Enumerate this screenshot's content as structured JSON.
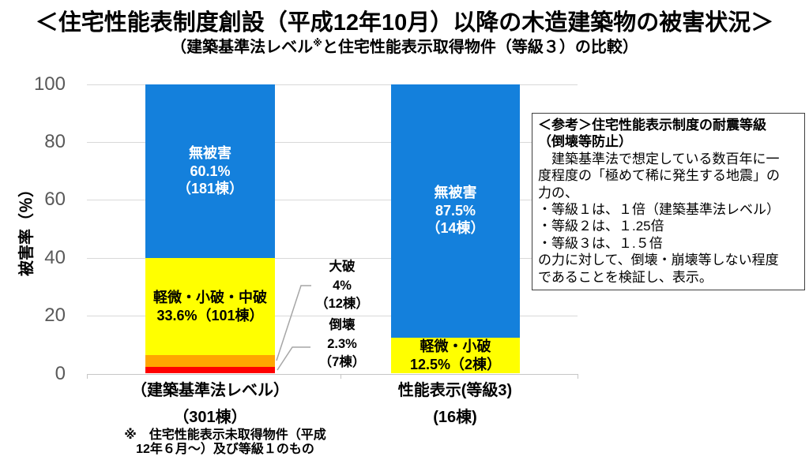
{
  "title": "＜住宅性能表制度創設（平成12年10月）以降の木造建築物の被害状況＞",
  "subtitle": {
    "pre": "（建築基準法レベル",
    "marker": "※",
    "post": "と住宅性能表示取得物件（等級３）の比較）"
  },
  "footnote": {
    "lines": [
      "※　住宅性能表示未取得物件（平成",
      "12年６月～）及び等級１のもの"
    ]
  },
  "reference_box": {
    "heading_lines": [
      "＜参考＞住宅性能表示制度の耐震等級",
      "（倒壊等防止）"
    ],
    "body_lines": [
      "　建築基準法で想定している数百年に一",
      "度程度の「極めて稀に発生する地震」の",
      "力の、",
      "・等級１は、１倍（建築基準法レベル）",
      "・等級２は、１.25倍",
      "・等級３は、１.５倍",
      "の力に対して、倒壊・崩壊等しない程度",
      "であることを検証し、表示。"
    ]
  },
  "colors": {
    "no_damage_blue": "#1480DC",
    "minor_yellow": "#FFFF00",
    "severe_orange": "#FFA600",
    "collapse_red": "#FF0000",
    "gridline": "#D9D9D9",
    "axis_label_gray": "#595959",
    "leader_gray": "#A6A6A6"
  },
  "chart_data": {
    "type": "bar",
    "subtype": "stacked-percentage",
    "ylabel": "被害率（％）",
    "ylim": [
      0,
      100
    ],
    "yticks": [
      0,
      20,
      40,
      60,
      80,
      100
    ],
    "grid": "on",
    "categories": [
      {
        "lines": [
          "（建築基準法レベル）",
          "（301棟）"
        ]
      },
      {
        "lines": [
          "性能表示(等級3)",
          "(16棟)"
        ]
      }
    ],
    "bars": [
      {
        "category": "建築基準法レベル（301棟）",
        "segments": [
          {
            "name": "倒壊",
            "value": 2.3,
            "count": 7,
            "color": "#FF0000"
          },
          {
            "name": "大破",
            "value": 4,
            "count": 12,
            "color": "#FFA600"
          },
          {
            "name": "軽微・小破・中破",
            "value": 33.6,
            "count": 101,
            "color": "#FFFF00",
            "label_lines": [
              "軽微・小破・中破",
              "33.6%（101棟）"
            ],
            "label_color": "#000000"
          },
          {
            "name": "無被害",
            "value": 60.1,
            "count": 181,
            "color": "#1480DC",
            "label_lines": [
              "無被害",
              "60.1%",
              "（181棟）"
            ],
            "label_color": "#FFFFFF"
          }
        ]
      },
      {
        "category": "性能表示(等級3)(16棟)",
        "segments": [
          {
            "name": "軽微・小破",
            "value": 12.5,
            "count": 2,
            "color": "#FFFF00",
            "label_lines": [
              "軽微・小破",
              "12.5%（2棟）"
            ],
            "label_color": "#000000"
          },
          {
            "name": "無被害",
            "value": 87.5,
            "count": 14,
            "color": "#1480DC",
            "label_lines": [
              "無被害",
              "87.5%",
              "（14棟）"
            ],
            "label_color": "#FFFFFF"
          }
        ]
      }
    ],
    "annotations": [
      {
        "target": "大破",
        "lines": [
          "大破",
          "4%",
          "（12棟）"
        ]
      },
      {
        "target": "倒壊",
        "lines": [
          "倒壊",
          "2.3%",
          "（7棟）"
        ]
      }
    ],
    "legend_position": "none"
  }
}
